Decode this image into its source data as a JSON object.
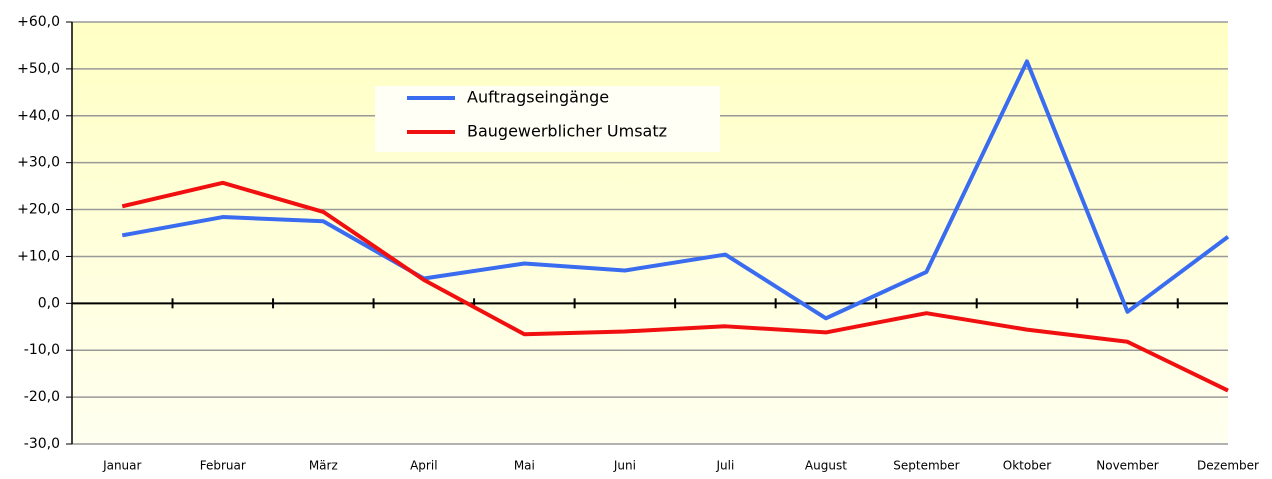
{
  "chart_data": {
    "type": "line",
    "categories": [
      "Januar",
      "Februar",
      "März",
      "April",
      "Mai",
      "Juni",
      "Juli",
      "August",
      "September",
      "Oktober",
      "November",
      "Dezember"
    ],
    "series": [
      {
        "name": "Auftragseingänge",
        "color": "#3a6cf0",
        "values": [
          14.5,
          18.4,
          17.5,
          5.3,
          8.5,
          7.0,
          10.4,
          -3.2,
          6.7,
          51.6,
          -1.8,
          14.2
        ]
      },
      {
        "name": "Baugewerblicher Umsatz",
        "color": "#f01010",
        "values": [
          20.7,
          25.7,
          19.5,
          5.0,
          -6.6,
          -6.0,
          -4.9,
          -6.2,
          -2.1,
          -5.6,
          -8.2,
          -18.6
        ]
      }
    ],
    "ylim": [
      -30,
      60
    ],
    "yticks": [
      {
        "value": -30,
        "label": "-30,0"
      },
      {
        "value": -20,
        "label": "-20,0"
      },
      {
        "value": -10,
        "label": "-10,0"
      },
      {
        "value": 0,
        "label": "0,0"
      },
      {
        "value": 10,
        "label": "+10,0"
      },
      {
        "value": 20,
        "label": "+20,0"
      },
      {
        "value": 30,
        "label": "+30,0"
      },
      {
        "value": 40,
        "label": "+40,0"
      },
      {
        "value": 50,
        "label": "+50,0"
      },
      {
        "value": 60,
        "label": "+60,0"
      }
    ],
    "grid": true,
    "legend": "upper-center"
  }
}
